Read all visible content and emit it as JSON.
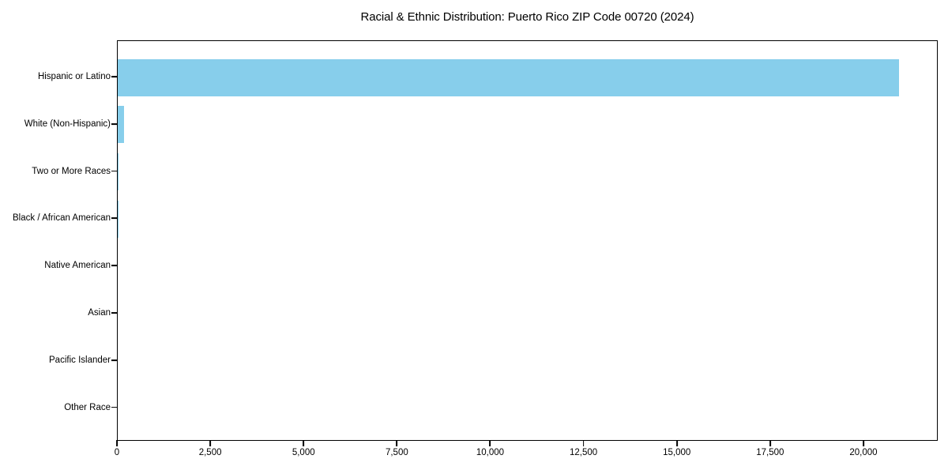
{
  "chart_data": {
    "type": "bar",
    "orientation": "horizontal",
    "title": "Racial & Ethnic Distribution: Puerto Rico ZIP Code 00720 (2024)",
    "categories": [
      "Hispanic or Latino",
      "White (Non-Hispanic)",
      "Two or More Races",
      "Black / African American",
      "Native American",
      "Asian",
      "Pacific Islander",
      "Other Race"
    ],
    "values": [
      20925,
      160,
      20,
      10,
      0,
      0,
      0,
      0
    ],
    "xlabel": "",
    "ylabel": "",
    "xlim": [
      0,
      21990
    ],
    "xticks": [
      {
        "value": 0,
        "label": "0"
      },
      {
        "value": 2500,
        "label": "2,500"
      },
      {
        "value": 5000,
        "label": "5,000"
      },
      {
        "value": 7500,
        "label": "7,500"
      },
      {
        "value": 10000,
        "label": "10,000"
      },
      {
        "value": 12500,
        "label": "12,500"
      },
      {
        "value": 15000,
        "label": "15,000"
      },
      {
        "value": 17500,
        "label": "17,500"
      },
      {
        "value": 20000,
        "label": "20,000"
      }
    ],
    "grid": false,
    "legend": null,
    "bar_color": "#87CEEB",
    "axis_color": "#000000",
    "text_color": "#000000",
    "background_color": "#FFFFFF"
  }
}
